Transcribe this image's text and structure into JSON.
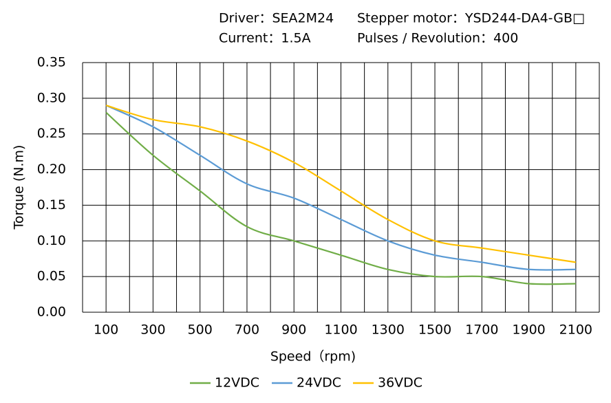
{
  "chart_data": {
    "type": "line",
    "header": [
      "Driver：SEA2M24",
      "Stepper motor：YSD244-DA4-GB□",
      "Current：1.5A",
      "Pulses / Revolution：400"
    ],
    "xlabel": "Speed（rpm)",
    "ylabel": "Torque (N.m)",
    "x": [
      100,
      300,
      500,
      700,
      900,
      1100,
      1300,
      1500,
      1700,
      1900,
      2100
    ],
    "series": [
      {
        "name": "12VDC",
        "color": "#70ad47",
        "values": [
          0.28,
          0.22,
          0.17,
          0.12,
          0.1,
          0.08,
          0.06,
          0.05,
          0.05,
          0.04,
          0.04
        ]
      },
      {
        "name": "24VDC",
        "color": "#5b9bd5",
        "values": [
          0.29,
          0.26,
          0.22,
          0.18,
          0.16,
          0.13,
          0.1,
          0.08,
          0.07,
          0.06,
          0.06
        ]
      },
      {
        "name": "36VDC",
        "color": "#ffc000",
        "values": [
          0.29,
          0.27,
          0.26,
          0.24,
          0.21,
          0.17,
          0.13,
          0.1,
          0.09,
          0.08,
          0.07
        ]
      }
    ],
    "xlim": [
      0,
      2200
    ],
    "xticks": [
      100,
      300,
      500,
      700,
      900,
      1100,
      1300,
      1500,
      1700,
      1900,
      2100
    ],
    "x_minor_grid": [
      0,
      200,
      400,
      600,
      800,
      1000,
      1200,
      1400,
      1600,
      1800,
      2000,
      2200
    ],
    "ylim": [
      0,
      0.35
    ],
    "yticks": [
      {
        "value": 0,
        "label": "0.00"
      },
      0.05,
      {
        "value": 0.1,
        "label": "0.10"
      },
      0.15,
      {
        "value": 0.2,
        "label": "0.20"
      },
      0.25,
      {
        "value": 0.3,
        "label": "0.30"
      },
      0.35
    ],
    "grid": true,
    "smooth": true,
    "legend": "bottom"
  }
}
